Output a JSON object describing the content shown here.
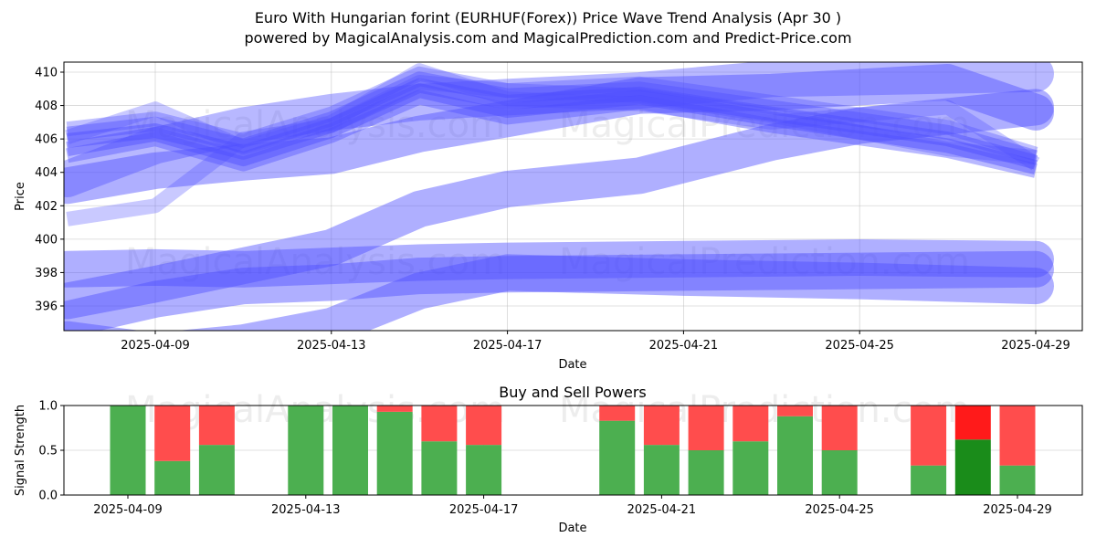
{
  "title_line1": "Euro With Hungarian forint (EURHUF(Forex)) Price Wave Trend Analysis (Apr 30 )",
  "title_line2": "powered by MagicalAnalysis.com and MagicalPrediction.com and Predict-Price.com",
  "watermarks": [
    "MagicalAnalysis.com",
    "MagicalPrediction.com"
  ],
  "colors": {
    "wave": "#4d4dff",
    "buy": "#4caf50",
    "sell": "#ff4d4d",
    "buy_strong": "#1a8c1a",
    "sell_strong": "#ff1a1a"
  },
  "chart_data": [
    {
      "type": "line",
      "xlabel": "Date",
      "ylabel": "Price",
      "x_ticks": [
        "2025-04-09",
        "2025-04-13",
        "2025-04-17",
        "2025-04-21",
        "2025-04-25",
        "2025-04-29"
      ],
      "y_ticks": [
        396,
        398,
        400,
        402,
        404,
        406,
        408,
        410
      ],
      "xlim": [
        "2025-04-07",
        "2025-04-30"
      ],
      "ylim": [
        394.5,
        410.7
      ],
      "grid": true,
      "series": [
        {
          "x": [
            "2025-04-07",
            "2025-04-09",
            "2025-04-11",
            "2025-04-13",
            "2025-04-15",
            "2025-04-17",
            "2025-04-20",
            "2025-04-23",
            "2025-04-27",
            "2025-04-29"
          ],
          "values": [
            405.9,
            406.5,
            405.2,
            406.8,
            409.2,
            408.2,
            408.7,
            407.5,
            406.0,
            404.6
          ],
          "opacity": 0.45
        },
        {
          "x": [
            "2025-04-07",
            "2025-04-09",
            "2025-04-11",
            "2025-04-13",
            "2025-04-15",
            "2025-04-17",
            "2025-04-20",
            "2025-04-23",
            "2025-04-27",
            "2025-04-29"
          ],
          "values": [
            405.4,
            406.3,
            404.8,
            406.5,
            408.9,
            407.7,
            408.5,
            407.2,
            405.6,
            404.3
          ],
          "opacity": 0.45
        },
        {
          "x": [
            "2025-04-07",
            "2025-04-09",
            "2025-04-11",
            "2025-04-13",
            "2025-04-15",
            "2025-04-17",
            "2025-04-20",
            "2025-04-23",
            "2025-04-27",
            "2025-04-29"
          ],
          "values": [
            406.3,
            406.9,
            405.6,
            407.2,
            409.6,
            408.6,
            409.0,
            407.9,
            406.4,
            404.9
          ],
          "opacity": 0.4
        },
        {
          "x": [
            "2025-04-07",
            "2025-04-09",
            "2025-04-11",
            "2025-04-13",
            "2025-04-15",
            "2025-04-17",
            "2025-04-20",
            "2025-04-23",
            "2025-04-27",
            "2025-04-29"
          ],
          "values": [
            405.0,
            406.0,
            404.5,
            406.2,
            408.5,
            407.3,
            408.2,
            406.8,
            405.3,
            404.1
          ],
          "opacity": 0.4
        },
        {
          "x": [
            "2025-04-07",
            "2025-04-09",
            "2025-04-11",
            "2025-04-13",
            "2025-04-15",
            "2025-04-17",
            "2025-04-20",
            "2025-04-23",
            "2025-04-27",
            "2025-04-29"
          ],
          "values": [
            406.6,
            407.2,
            405.9,
            407.5,
            409.9,
            408.9,
            409.3,
            408.2,
            406.7,
            405.1
          ],
          "opacity": 0.35
        },
        {
          "x": [
            "2025-04-07",
            "2025-04-09",
            "2025-04-11",
            "2025-04-13",
            "2025-04-15",
            "2025-04-17",
            "2025-04-20",
            "2025-04-23",
            "2025-04-27",
            "2025-04-29"
          ],
          "values": [
            406.1,
            407.8,
            405.5,
            407.0,
            410.1,
            408.4,
            408.1,
            407.0,
            407.9,
            404.5
          ],
          "opacity": 0.3
        },
        {
          "x": [
            "2025-04-07",
            "2025-04-09",
            "2025-04-11",
            "2025-04-13",
            "2025-04-15",
            "2025-04-17",
            "2025-04-20",
            "2025-04-23",
            "2025-04-27",
            "2025-04-29"
          ],
          "values": [
            401.2,
            402.0,
            406.0,
            406.8,
            409.4,
            408.9,
            408.6,
            407.4,
            405.4,
            404.9
          ],
          "opacity": 0.3
        },
        {
          "x": [
            "2025-04-07",
            "2025-04-09",
            "2025-04-11",
            "2025-04-13",
            "2025-04-15",
            "2025-04-17",
            "2025-04-20",
            "2025-04-23",
            "2025-04-29"
          ],
          "values": [
            403.6,
            405.6,
            406.8,
            407.6,
            408.2,
            408.5,
            408.9,
            409.6,
            409.9
          ],
          "opacity": 0.4
        },
        {
          "x": [
            "2025-04-07",
            "2025-04-09",
            "2025-04-11",
            "2025-04-13",
            "2025-04-15",
            "2025-04-17",
            "2025-04-20",
            "2025-04-23",
            "2025-04-27",
            "2025-04-29"
          ],
          "values": [
            403.2,
            404.1,
            404.6,
            405.0,
            406.3,
            407.2,
            408.6,
            408.8,
            409.4,
            407.6
          ],
          "opacity": 0.45
        },
        {
          "x": [
            "2025-04-07",
            "2025-04-09",
            "2025-04-11",
            "2025-04-13",
            "2025-04-15",
            "2025-04-17",
            "2025-04-20",
            "2025-04-23",
            "2025-04-25",
            "2025-04-29"
          ],
          "values": [
            396.3,
            397.3,
            398.4,
            399.5,
            401.8,
            403.0,
            403.8,
            405.8,
            406.8,
            407.9
          ],
          "opacity": 0.45
        },
        {
          "x": [
            "2025-04-07",
            "2025-04-09",
            "2025-04-11",
            "2025-04-13",
            "2025-04-15",
            "2025-04-17",
            "2025-04-21",
            "2025-04-25",
            "2025-04-29"
          ],
          "values": [
            398.2,
            398.3,
            398.2,
            398.4,
            398.6,
            398.7,
            398.8,
            398.9,
            398.8
          ],
          "opacity": 0.45
        },
        {
          "x": [
            "2025-04-07",
            "2025-04-09",
            "2025-04-11",
            "2025-04-13",
            "2025-04-15",
            "2025-04-17",
            "2025-04-21",
            "2025-04-25",
            "2025-04-29"
          ],
          "values": [
            395.2,
            396.4,
            397.2,
            397.4,
            397.8,
            397.9,
            398.0,
            398.1,
            398.2
          ],
          "opacity": 0.45
        },
        {
          "x": [
            "2025-04-07",
            "2025-04-09",
            "2025-04-11",
            "2025-04-13",
            "2025-04-15",
            "2025-04-17",
            "2025-04-21",
            "2025-04-25",
            "2025-04-29"
          ],
          "values": [
            394.0,
            393.3,
            393.8,
            394.8,
            396.9,
            398.0,
            397.7,
            397.5,
            397.2
          ],
          "opacity": 0.45
        }
      ]
    },
    {
      "type": "bar",
      "title": "Buy and Sell Powers",
      "xlabel": "Date",
      "ylabel": "Signal Strength",
      "x_ticks": [
        "2025-04-09",
        "2025-04-13",
        "2025-04-17",
        "2025-04-21",
        "2025-04-25",
        "2025-04-29"
      ],
      "y_ticks": [
        "0.0",
        "0.5",
        "1.0"
      ],
      "ylim": [
        0,
        1
      ],
      "categories": [
        "2025-04-09",
        "2025-04-10",
        "2025-04-11",
        "2025-04-13",
        "2025-04-14",
        "2025-04-15",
        "2025-04-16",
        "2025-04-17",
        "2025-04-20",
        "2025-04-21",
        "2025-04-22",
        "2025-04-23",
        "2025-04-24",
        "2025-04-25",
        "2025-04-27",
        "2025-04-28",
        "2025-04-29"
      ],
      "series": [
        {
          "name": "buy",
          "values": [
            1.0,
            0.38,
            0.56,
            1.0,
            1.0,
            0.93,
            0.6,
            0.56,
            0.83,
            0.56,
            0.5,
            0.6,
            0.88,
            0.5,
            0.33,
            0.62,
            0.33
          ]
        },
        {
          "name": "sell",
          "values": [
            0.0,
            0.62,
            0.44,
            0.0,
            0.0,
            0.07,
            0.4,
            0.44,
            0.17,
            0.44,
            0.5,
            0.4,
            0.12,
            0.5,
            0.67,
            0.38,
            0.67
          ]
        }
      ],
      "highlight_category": "2025-04-28"
    }
  ]
}
